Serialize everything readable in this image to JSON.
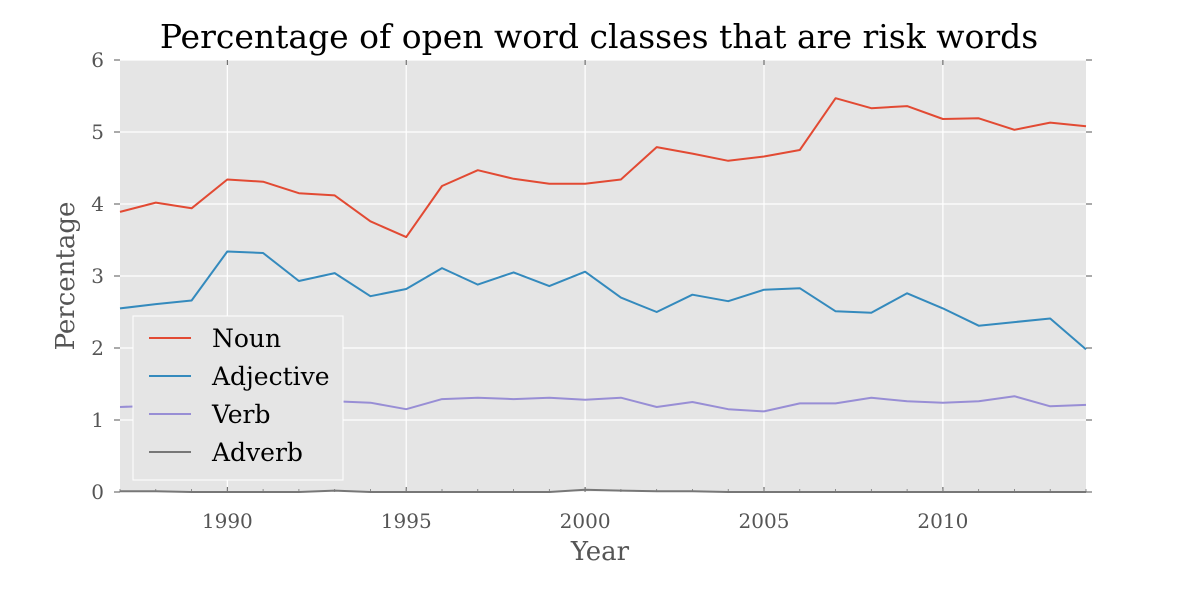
{
  "chart_data": {
    "type": "line",
    "title": "Percentage of open word classes that are risk words",
    "xlabel": "Year",
    "ylabel": "Percentage",
    "xlim": [
      1987,
      2014
    ],
    "ylim": [
      0,
      6
    ],
    "xticks": [
      1990,
      1995,
      2000,
      2005,
      2010
    ],
    "yticks": [
      0,
      1,
      2,
      3,
      4,
      5,
      6
    ],
    "grid": true,
    "legend_position": "lower-left",
    "x": [
      1987,
      1988,
      1989,
      1990,
      1991,
      1992,
      1993,
      1994,
      1995,
      1996,
      1997,
      1998,
      1999,
      2000,
      2001,
      2002,
      2003,
      2004,
      2005,
      2006,
      2007,
      2008,
      2009,
      2010,
      2011,
      2012,
      2013,
      2014
    ],
    "series": [
      {
        "name": "Noun",
        "color": "#e24a33",
        "values": [
          3.89,
          4.02,
          3.94,
          4.34,
          4.31,
          4.15,
          4.12,
          3.76,
          3.54,
          4.25,
          4.47,
          4.35,
          4.28,
          4.28,
          4.34,
          4.79,
          4.7,
          4.6,
          4.66,
          4.75,
          5.47,
          5.33,
          5.36,
          5.18,
          5.19,
          5.03,
          5.13,
          5.08
        ]
      },
      {
        "name": "Adjective",
        "color": "#348abd",
        "values": [
          2.55,
          2.61,
          2.66,
          3.34,
          3.32,
          2.93,
          3.04,
          2.72,
          2.82,
          3.11,
          2.88,
          3.05,
          2.86,
          3.06,
          2.7,
          2.5,
          2.74,
          2.65,
          2.81,
          2.83,
          2.51,
          2.49,
          2.76,
          2.55,
          2.31,
          2.36,
          2.41,
          1.98
        ]
      },
      {
        "name": "Verb",
        "color": "#988ed5",
        "values": [
          1.18,
          1.2,
          1.24,
          1.36,
          1.41,
          1.46,
          1.26,
          1.24,
          1.15,
          1.29,
          1.31,
          1.29,
          1.31,
          1.28,
          1.31,
          1.18,
          1.25,
          1.15,
          1.12,
          1.23,
          1.23,
          1.31,
          1.26,
          1.24,
          1.26,
          1.33,
          1.19,
          1.21
        ]
      },
      {
        "name": "Adverb",
        "color": "#777777",
        "values": [
          0.01,
          0.01,
          0.0,
          0.0,
          0.0,
          0.0,
          0.02,
          0.0,
          0.0,
          0.0,
          0.0,
          0.0,
          0.0,
          0.03,
          0.02,
          0.01,
          0.01,
          0.0,
          0.0,
          0.0,
          0.0,
          0.0,
          0.0,
          0.0,
          0.0,
          0.0,
          0.0,
          0.0
        ]
      }
    ]
  }
}
